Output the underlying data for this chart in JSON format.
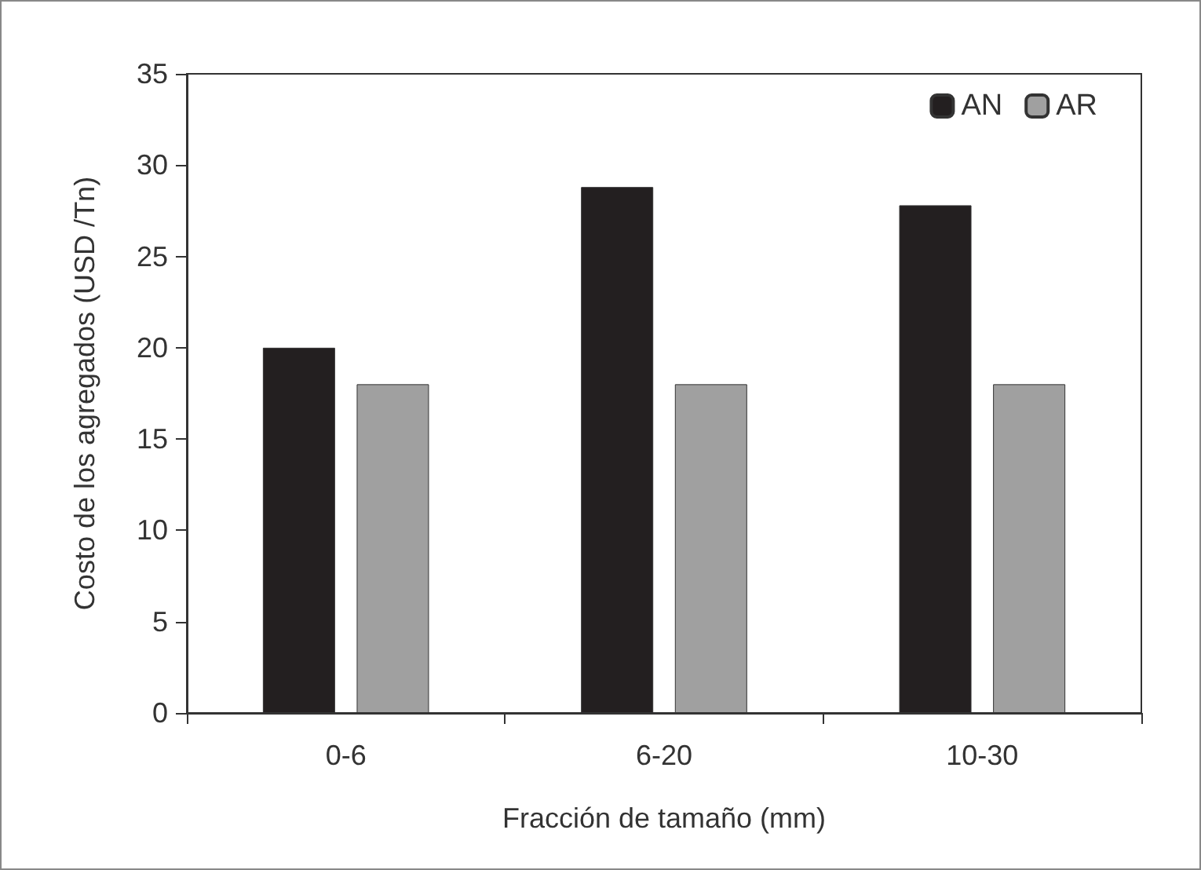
{
  "chart_data": {
    "type": "bar",
    "xlabel": "Fracción de tamaño (mm)",
    "ylabel": "Costo de los agregados (USD /Tn)",
    "categories": [
      "0-6",
      "6-20",
      "10-30"
    ],
    "series": [
      {
        "name": "AN",
        "color": "#231f20",
        "values": [
          20,
          28.8,
          27.8
        ]
      },
      {
        "name": "AR",
        "color": "#a0a0a0",
        "values": [
          18,
          18,
          18
        ]
      }
    ],
    "ylim": [
      0,
      35
    ],
    "yticks": [
      0,
      5,
      10,
      15,
      20,
      25,
      30,
      35
    ],
    "grid": false,
    "legend": "top right"
  }
}
